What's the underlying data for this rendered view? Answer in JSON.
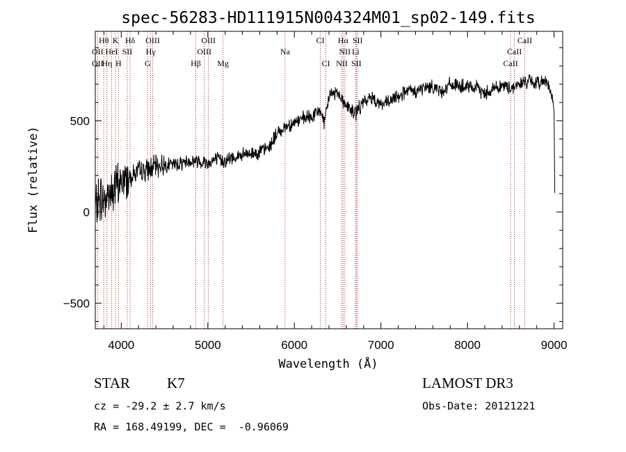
{
  "chart_data": {
    "type": "line",
    "title": "spec-56283-HD111915N004324M01_sp02-149.fits",
    "xlabel": "Wavelength (Å)",
    "ylabel": "Flux (relative)",
    "xlim": [
      3700,
      9100
    ],
    "ylim": [
      -640,
      990
    ],
    "xticks": [
      4000,
      5000,
      6000,
      7000,
      8000,
      9000
    ],
    "yticks": [
      -500,
      0,
      500
    ],
    "spectrum": {
      "x": [
        3700,
        3750,
        3800,
        3850,
        3900,
        3950,
        4000,
        4100,
        4200,
        4300,
        4400,
        4500,
        4600,
        4700,
        4800,
        4900,
        5000,
        5100,
        5200,
        5300,
        5400,
        5500,
        5600,
        5700,
        5800,
        5900,
        6000,
        6100,
        6200,
        6300,
        6350,
        6400,
        6500,
        6600,
        6700,
        6800,
        6900,
        7000,
        7100,
        7200,
        7300,
        7400,
        7500,
        7600,
        7700,
        7800,
        7900,
        8000,
        8100,
        8200,
        8300,
        8400,
        8500,
        8600,
        8700,
        8800,
        8900,
        8950,
        9000,
        9010
      ],
      "y": [
        10,
        80,
        60,
        100,
        110,
        140,
        160,
        200,
        220,
        230,
        250,
        260,
        260,
        270,
        280,
        280,
        270,
        290,
        280,
        300,
        310,
        320,
        330,
        350,
        430,
        470,
        490,
        510,
        520,
        560,
        480,
        640,
        660,
        580,
        540,
        600,
        630,
        590,
        600,
        640,
        660,
        660,
        680,
        690,
        660,
        700,
        690,
        680,
        680,
        650,
        680,
        690,
        680,
        700,
        720,
        700,
        730,
        680,
        560,
        10
      ]
    },
    "lines": [
      {
        "name": "Hθ",
        "wl": 3798,
        "row": 1
      },
      {
        "name": "K",
        "wl": 3934,
        "row": 1
      },
      {
        "name": "Hδ",
        "wl": 4102,
        "row": 1
      },
      {
        "name": "OIII",
        "wl": 4363,
        "row": 1
      },
      {
        "name": "OIII",
        "wl": 5007,
        "row": 1
      },
      {
        "name": "CI",
        "wl": 6300,
        "row": 1
      },
      {
        "name": "Hα",
        "wl": 6563,
        "row": 1
      },
      {
        "name": "SII",
        "wl": 6731,
        "row": 1
      },
      {
        "name": "CaII",
        "wl": 8662,
        "row": 1
      },
      {
        "name": "OII",
        "wl": 3727,
        "row": 2
      },
      {
        "name": "HeI",
        "wl": 3889,
        "row": 2
      },
      {
        "name": "SII",
        "wl": 4069,
        "row": 2
      },
      {
        "name": "Hγ",
        "wl": 4340,
        "row": 2
      },
      {
        "name": "OIII",
        "wl": 4959,
        "row": 2
      },
      {
        "name": "Na",
        "wl": 5893,
        "row": 2
      },
      {
        "name": "NII",
        "wl": 6583,
        "row": 2
      },
      {
        "name": "Li",
        "wl": 6708,
        "row": 2
      },
      {
        "name": "CaII",
        "wl": 8542,
        "row": 2
      },
      {
        "name": "OII",
        "wl": 3727,
        "row": 3
      },
      {
        "name": "Hη",
        "wl": 3835,
        "row": 3
      },
      {
        "name": "H",
        "wl": 3968,
        "row": 3
      },
      {
        "name": "G",
        "wl": 4304,
        "row": 3
      },
      {
        "name": "Hβ",
        "wl": 4861,
        "row": 3
      },
      {
        "name": "Mg",
        "wl": 5175,
        "row": 3
      },
      {
        "name": "CI",
        "wl": 6364,
        "row": 3
      },
      {
        "name": "NII",
        "wl": 6548,
        "row": 3
      },
      {
        "name": "SII",
        "wl": 6716,
        "row": 3
      },
      {
        "name": "CaII",
        "wl": 8498,
        "row": 3
      }
    ]
  },
  "info": {
    "object_class": "STAR",
    "subclass": "K7",
    "survey": "LAMOST DR3",
    "cz": "cz = -29.2 ± 2.7 km/s",
    "obs_date": "Obs-Date: 20121221",
    "coords": "RA = 168.49199, DEC =  -0.96069"
  }
}
